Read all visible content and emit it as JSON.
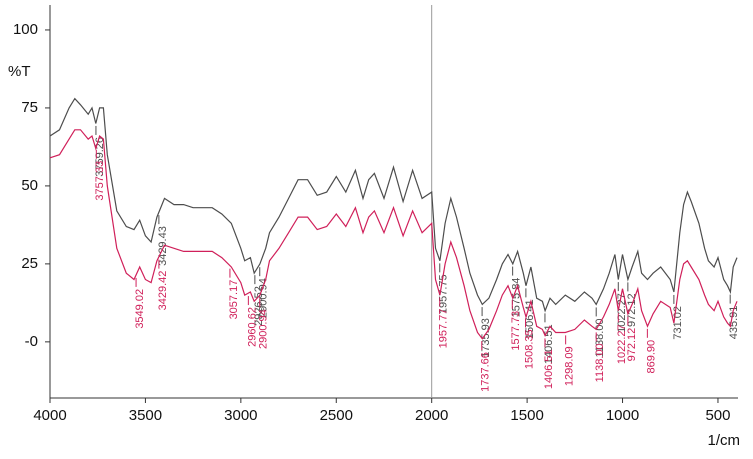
{
  "chart_data": {
    "type": "line",
    "x_label": "1/cm",
    "y_label": "%T",
    "xlim": [
      4000,
      395
    ],
    "ylim": [
      -18,
      108
    ],
    "xticks": [
      4000,
      3500,
      3000,
      2500,
      2000,
      1500,
      1000,
      500
    ],
    "yticks": [
      100,
      75,
      50,
      25,
      {
        "value": 0,
        "label": "-0"
      }
    ],
    "marker_x": 2000,
    "marker_color": "#999999",
    "x": [
      4000,
      3950,
      3900,
      3870,
      3840,
      3800,
      3780,
      3760,
      3740,
      3720,
      3700,
      3650,
      3600,
      3560,
      3530,
      3500,
      3470,
      3440,
      3400,
      3350,
      3300,
      3250,
      3200,
      3150,
      3100,
      3050,
      3000,
      2980,
      2950,
      2930,
      2900,
      2870,
      2850,
      2800,
      2750,
      2700,
      2650,
      2600,
      2550,
      2500,
      2450,
      2400,
      2360,
      2330,
      2300,
      2250,
      2200,
      2150,
      2100,
      2050,
      2000,
      1980,
      1957,
      1930,
      1900,
      1870,
      1830,
      1800,
      1760,
      1735,
      1700,
      1660,
      1630,
      1600,
      1575,
      1550,
      1520,
      1506,
      1480,
      1450,
      1420,
      1406,
      1380,
      1350,
      1300,
      1250,
      1200,
      1160,
      1138,
      1100,
      1070,
      1040,
      1022,
      1000,
      972,
      950,
      920,
      900,
      869,
      840,
      800,
      750,
      731,
      700,
      680,
      660,
      640,
      600,
      570,
      550,
      520,
      500,
      470,
      450,
      435,
      420,
      400
    ],
    "series": [
      {
        "color": "#4d4d4d",
        "values": [
          66,
          68,
          75,
          78,
          76,
          73,
          75,
          70,
          75,
          75,
          60,
          42,
          37,
          36,
          39,
          34,
          32,
          40,
          46,
          44,
          44,
          43,
          43,
          43,
          41,
          38,
          30,
          26,
          27,
          22,
          25,
          30,
          35,
          40,
          46,
          52,
          52,
          47,
          48,
          53,
          48,
          55,
          46,
          52,
          54,
          46,
          56,
          45,
          55,
          46,
          48,
          30,
          26,
          38,
          46,
          40,
          30,
          22,
          15,
          12,
          14,
          20,
          25,
          28,
          25,
          29,
          22,
          18,
          24,
          14,
          13,
          10,
          14,
          12,
          15,
          13,
          16,
          14,
          12,
          17,
          22,
          28,
          20,
          28,
          20,
          24,
          29,
          22,
          20,
          22,
          24,
          20,
          16,
          35,
          44,
          48,
          45,
          38,
          30,
          26,
          24,
          27,
          20,
          18,
          16,
          24,
          27
        ],
        "peaks": [
          3759.26,
          3429.43,
          2926.52,
          2900.94,
          1957.75,
          1735.93,
          1575.84,
          1506.41,
          1406.51,
          1138.0,
          1022.27,
          972.12,
          731.02,
          435.91
        ],
        "peak_labels": [
          "3759.26",
          "3429.43",
          "2926.52",
          "2900.94",
          "1957.75",
          "1735.93",
          "1575.84",
          "1506.41",
          "1406.51",
          "1138.00",
          "1022.27",
          "972.12",
          "731.02",
          "435.91"
        ]
      },
      {
        "color": "#d0205a",
        "values": [
          59,
          60,
          65,
          68,
          68,
          65,
          66,
          62,
          66,
          65,
          50,
          30,
          22,
          20,
          24,
          20,
          19,
          26,
          31,
          30,
          29,
          29,
          29,
          29,
          27,
          24,
          19,
          15,
          16,
          13,
          15,
          20,
          26,
          30,
          35,
          40,
          40,
          36,
          37,
          41,
          37,
          43,
          35,
          40,
          42,
          35,
          43,
          34,
          42,
          35,
          38,
          20,
          15,
          25,
          32,
          27,
          18,
          10,
          3,
          1,
          4,
          10,
          15,
          18,
          14,
          18,
          11,
          8,
          13,
          5,
          4,
          2,
          5,
          3,
          3,
          4,
          7,
          5,
          4,
          8,
          12,
          17,
          10,
          17,
          9,
          12,
          17,
          10,
          5,
          9,
          13,
          11,
          6,
          20,
          25,
          26,
          24,
          20,
          15,
          12,
          10,
          13,
          8,
          6,
          5,
          10,
          13
        ],
        "peaks": [
          3757.33,
          3549.02,
          3429.42,
          3057.17,
          2960.62,
          2900.94,
          1957.77,
          1737.66,
          1577.73,
          1508.35,
          1406.51,
          1298.09,
          1138.0,
          1022.27,
          972.12,
          869.9
        ],
        "peak_labels": [
          "3757.33",
          "3549.02",
          "3429.42",
          "3057.17",
          "2960.62",
          "2900.94",
          "1957.77",
          "1737.66",
          "1577.73",
          "1508.35",
          "1406.51",
          "1298.09",
          "1138.00",
          "1022.27",
          "972.12",
          "869.90"
        ]
      }
    ]
  }
}
